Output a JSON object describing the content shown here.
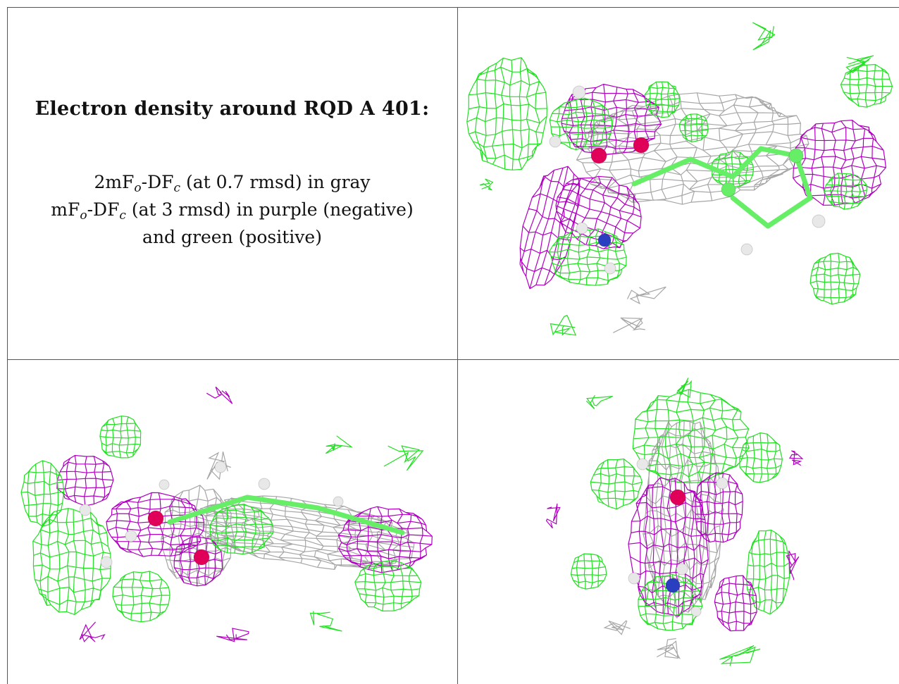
{
  "caption": {
    "title": "Electron density around RQD A 401:",
    "line1": {
      "prefix": "2mF",
      "sub1": "o",
      "mid": "-DF",
      "sub2": "c",
      "suffix": " (at 0.7 rmsd) in gray"
    },
    "line2": {
      "prefix": "mF",
      "sub1": "o",
      "mid": "-DF",
      "sub2": "c",
      "suffix": " (at 3 rmsd) in purple (negative)"
    },
    "line3": "and green (positive)"
  },
  "colors": {
    "gray_map": "#a6a6a6",
    "negative_map": "#b000c0",
    "positive_map": "#22e022",
    "hydrogen": "#e8e8e8",
    "oxygen": "#e0005a",
    "nitrogen": "#2a3fc0",
    "carbon": "#66ee66"
  },
  "panels": [
    {
      "id": "view-1",
      "description_icon": "mesh-view"
    },
    {
      "id": "view-2",
      "description_icon": "mesh-view"
    },
    {
      "id": "view-3",
      "description_icon": "mesh-view"
    }
  ]
}
